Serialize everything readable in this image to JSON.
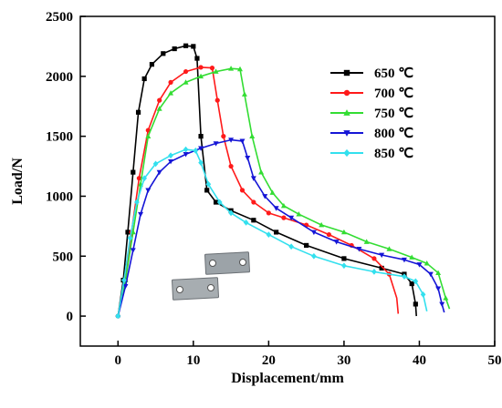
{
  "chart_data": {
    "type": "line",
    "xlabel": "Displacement/mm",
    "ylabel": "Load/N",
    "xlim": [
      -5,
      50
    ],
    "ylim": [
      -250,
      2500
    ],
    "xticks": [
      0,
      10,
      20,
      30,
      40,
      50
    ],
    "yticks": [
      0,
      500,
      1000,
      1500,
      2000,
      2500
    ],
    "grid": false,
    "legend_position": "top-right",
    "series": [
      {
        "name": "650 ℃",
        "color": "#000000",
        "marker": "square",
        "points": [
          [
            0,
            0
          ],
          [
            0.7,
            300
          ],
          [
            1.3,
            700
          ],
          [
            2,
            1200
          ],
          [
            2.7,
            1700
          ],
          [
            3.5,
            1980
          ],
          [
            4.5,
            2100
          ],
          [
            6,
            2190
          ],
          [
            7.5,
            2230
          ],
          [
            9,
            2255
          ],
          [
            10,
            2250
          ],
          [
            10.5,
            2150
          ],
          [
            11,
            1500
          ],
          [
            11.8,
            1050
          ],
          [
            13,
            950
          ],
          [
            15,
            880
          ],
          [
            18,
            800
          ],
          [
            21,
            700
          ],
          [
            25,
            590
          ],
          [
            30,
            480
          ],
          [
            35,
            400
          ],
          [
            38,
            350
          ],
          [
            39,
            270
          ],
          [
            39.5,
            100
          ],
          [
            39.6,
            0
          ]
        ],
        "marker_x": [
          0.7,
          1.3,
          2,
          2.7,
          3.5,
          4.5,
          6,
          7.5,
          9,
          10,
          10.5,
          11,
          11.8,
          13,
          15,
          18,
          21,
          25,
          30,
          35,
          38,
          39,
          39.5
        ]
      },
      {
        "name": "700 ℃",
        "color": "#ff1a1a",
        "marker": "circle",
        "points": [
          [
            0,
            0
          ],
          [
            1,
            300
          ],
          [
            1.8,
            700
          ],
          [
            2.8,
            1150
          ],
          [
            4,
            1550
          ],
          [
            5.5,
            1800
          ],
          [
            7,
            1950
          ],
          [
            9,
            2040
          ],
          [
            11,
            2075
          ],
          [
            12.5,
            2070
          ],
          [
            13.2,
            1800
          ],
          [
            14,
            1500
          ],
          [
            15,
            1250
          ],
          [
            16.5,
            1050
          ],
          [
            18,
            950
          ],
          [
            20,
            860
          ],
          [
            22,
            820
          ],
          [
            25,
            760
          ],
          [
            28,
            680
          ],
          [
            31,
            590
          ],
          [
            34,
            480
          ],
          [
            36,
            350
          ],
          [
            37,
            150
          ],
          [
            37.2,
            20
          ]
        ],
        "marker_x": [
          1,
          1.8,
          2.8,
          4,
          5.5,
          7,
          9,
          11,
          12.5,
          13.2,
          14,
          15,
          16.5,
          18,
          20,
          22,
          25,
          28,
          31,
          34,
          36
        ]
      },
      {
        "name": "750 ℃",
        "color": "#33dd33",
        "marker": "triangle-up",
        "points": [
          [
            0,
            0
          ],
          [
            1,
            300
          ],
          [
            2,
            700
          ],
          [
            3,
            1100
          ],
          [
            4,
            1500
          ],
          [
            5.5,
            1730
          ],
          [
            7,
            1860
          ],
          [
            9,
            1950
          ],
          [
            11,
            2000
          ],
          [
            13,
            2040
          ],
          [
            15,
            2065
          ],
          [
            16.2,
            2060
          ],
          [
            16.8,
            1850
          ],
          [
            17.8,
            1500
          ],
          [
            19,
            1200
          ],
          [
            20.5,
            1030
          ],
          [
            22,
            920
          ],
          [
            24,
            850
          ],
          [
            27,
            760
          ],
          [
            30,
            700
          ],
          [
            33,
            620
          ],
          [
            36,
            560
          ],
          [
            39,
            490
          ],
          [
            41,
            440
          ],
          [
            42.5,
            360
          ],
          [
            43.5,
            150
          ],
          [
            44,
            60
          ]
        ],
        "marker_x": [
          1,
          2,
          3,
          4,
          5.5,
          7,
          9,
          11,
          13,
          15,
          16.2,
          16.8,
          17.8,
          19,
          20.5,
          22,
          24,
          27,
          30,
          33,
          36,
          39,
          41,
          42.5,
          43.5
        ]
      },
      {
        "name": "800 ℃",
        "color": "#1515d6",
        "marker": "triangle-down",
        "points": [
          [
            0,
            0
          ],
          [
            1,
            250
          ],
          [
            2,
            550
          ],
          [
            3,
            850
          ],
          [
            4,
            1050
          ],
          [
            5.5,
            1200
          ],
          [
            7,
            1290
          ],
          [
            9,
            1350
          ],
          [
            11,
            1400
          ],
          [
            13,
            1440
          ],
          [
            15,
            1470
          ],
          [
            16.5,
            1460
          ],
          [
            17.2,
            1320
          ],
          [
            18,
            1150
          ],
          [
            19.5,
            1000
          ],
          [
            21,
            900
          ],
          [
            23,
            820
          ],
          [
            26,
            700
          ],
          [
            29,
            620
          ],
          [
            32,
            560
          ],
          [
            35,
            510
          ],
          [
            38,
            470
          ],
          [
            40,
            430
          ],
          [
            41.5,
            350
          ],
          [
            42.5,
            230
          ],
          [
            43,
            100
          ],
          [
            43.3,
            30
          ]
        ],
        "marker_x": [
          1,
          2,
          3,
          4,
          5.5,
          7,
          9,
          11,
          13,
          15,
          16.5,
          17.2,
          18,
          19.5,
          21,
          23,
          26,
          29,
          32,
          35,
          38,
          40,
          41.5,
          42.5,
          43
        ]
      },
      {
        "name": "850 ℃",
        "color": "#33e0ee",
        "marker": "diamond",
        "points": [
          [
            0,
            0
          ],
          [
            0.8,
            300
          ],
          [
            1.6,
            650
          ],
          [
            2.5,
            950
          ],
          [
            3.5,
            1150
          ],
          [
            5,
            1270
          ],
          [
            7,
            1340
          ],
          [
            9,
            1390
          ],
          [
            10.3,
            1380
          ],
          [
            11,
            1280
          ],
          [
            12,
            1100
          ],
          [
            13.5,
            950
          ],
          [
            15,
            860
          ],
          [
            17,
            780
          ],
          [
            20,
            680
          ],
          [
            23,
            580
          ],
          [
            26,
            500
          ],
          [
            30,
            420
          ],
          [
            34,
            370
          ],
          [
            38,
            330
          ],
          [
            39.5,
            290
          ],
          [
            40.5,
            180
          ],
          [
            41,
            40
          ]
        ],
        "marker_x": [
          0.8,
          1.6,
          2.5,
          3.5,
          5,
          7,
          9,
          10.3,
          11,
          12,
          13.5,
          15,
          17,
          20,
          23,
          26,
          30,
          34,
          38,
          39.5,
          40.5
        ]
      }
    ]
  }
}
